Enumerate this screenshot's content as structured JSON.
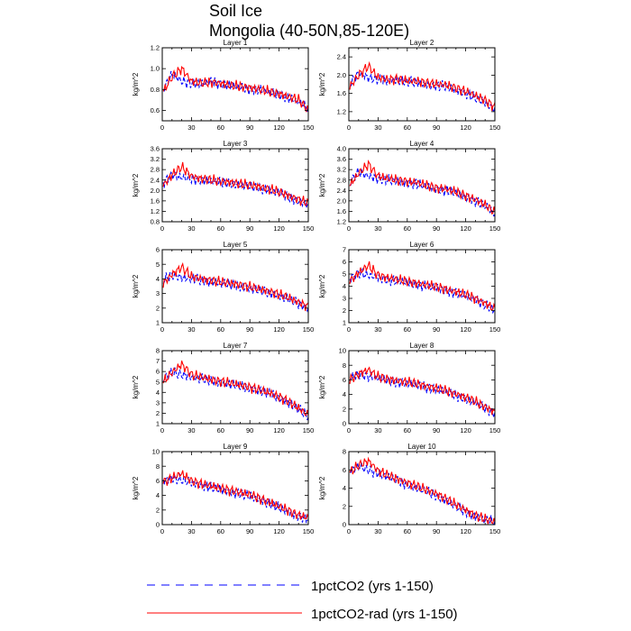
{
  "figure": {
    "title": "Soil Ice",
    "subtitle": "Mongolia (40-50N,85-120E)"
  },
  "legend": [
    {
      "label": "1pctCO2 (yrs 1-150)",
      "color": "#0000ff",
      "style": "dashed"
    },
    {
      "label": "1pctCO2-rad (yrs 1-150)",
      "color": "#ff0000",
      "style": "solid"
    }
  ],
  "chart_data": [
    {
      "type": "line",
      "title": "Layer 1",
      "ylabel": "kg/m^2",
      "xlim": [
        0,
        150
      ],
      "xticks": [
        0,
        30,
        60,
        90,
        120,
        150
      ],
      "ylim": [
        0.5,
        1.2
      ],
      "yticks": [
        0.6,
        0.8,
        1.0,
        1.2
      ],
      "series": [
        {
          "name": "1pctCO2 (yrs 1-150)",
          "x": [
            1,
            10,
            20,
            30,
            40,
            50,
            60,
            70,
            80,
            90,
            100,
            110,
            120,
            130,
            140,
            150
          ],
          "values": [
            0.8,
            0.95,
            0.88,
            0.86,
            0.85,
            0.88,
            0.85,
            0.84,
            0.82,
            0.8,
            0.8,
            0.77,
            0.75,
            0.72,
            0.68,
            0.62
          ]
        },
        {
          "name": "1pctCO2-rad (yrs 1-150)",
          "x": [
            1,
            10,
            20,
            30,
            40,
            50,
            60,
            70,
            80,
            90,
            100,
            110,
            120,
            130,
            140,
            150
          ],
          "values": [
            0.78,
            0.92,
            1.0,
            0.88,
            0.86,
            0.87,
            0.86,
            0.84,
            0.83,
            0.82,
            0.8,
            0.78,
            0.76,
            0.73,
            0.7,
            0.6
          ]
        }
      ]
    },
    {
      "type": "line",
      "title": "Layer 2",
      "ylabel": "kg/m^2",
      "xlim": [
        0,
        150
      ],
      "xticks": [
        0,
        30,
        60,
        90,
        120,
        150
      ],
      "ylim": [
        1.0,
        2.6
      ],
      "yticks": [
        1.2,
        1.6,
        2.0,
        2.4
      ],
      "series": [
        {
          "name": "1pctCO2 (yrs 1-150)",
          "x": [
            1,
            10,
            20,
            30,
            40,
            50,
            60,
            70,
            80,
            90,
            100,
            110,
            120,
            130,
            140,
            150
          ],
          "values": [
            1.8,
            2.05,
            1.95,
            1.9,
            1.88,
            1.9,
            1.85,
            1.84,
            1.8,
            1.76,
            1.75,
            1.68,
            1.6,
            1.5,
            1.4,
            1.25
          ]
        },
        {
          "name": "1pctCO2-rad (yrs 1-150)",
          "x": [
            1,
            10,
            20,
            30,
            40,
            50,
            60,
            70,
            80,
            90,
            100,
            110,
            120,
            130,
            140,
            150
          ],
          "values": [
            1.75,
            2.0,
            2.2,
            1.95,
            1.9,
            1.92,
            1.88,
            1.86,
            1.84,
            1.8,
            1.78,
            1.72,
            1.65,
            1.55,
            1.45,
            1.3
          ]
        }
      ]
    },
    {
      "type": "line",
      "title": "Layer 3",
      "ylabel": "kg/m^2",
      "xlim": [
        0,
        150
      ],
      "xticks": [
        0,
        30,
        60,
        90,
        120,
        150
      ],
      "ylim": [
        0.8,
        3.6
      ],
      "yticks": [
        0.8,
        1.2,
        1.6,
        2.0,
        2.4,
        2.8,
        3.2,
        3.6
      ],
      "series": [
        {
          "name": "1pctCO2 (yrs 1-150)",
          "x": [
            1,
            10,
            20,
            30,
            40,
            50,
            60,
            70,
            80,
            90,
            100,
            110,
            120,
            130,
            140,
            150
          ],
          "values": [
            2.3,
            2.6,
            2.5,
            2.45,
            2.4,
            2.35,
            2.3,
            2.3,
            2.2,
            2.15,
            2.1,
            2.0,
            1.9,
            1.75,
            1.6,
            1.45
          ]
        },
        {
          "name": "1pctCO2-rad (yrs 1-150)",
          "x": [
            1,
            10,
            20,
            30,
            40,
            50,
            60,
            70,
            80,
            90,
            100,
            110,
            120,
            130,
            140,
            150
          ],
          "values": [
            2.2,
            2.6,
            2.9,
            2.55,
            2.45,
            2.4,
            2.35,
            2.32,
            2.25,
            2.2,
            2.15,
            2.05,
            1.95,
            1.8,
            1.65,
            1.5
          ]
        }
      ]
    },
    {
      "type": "line",
      "title": "Layer 4",
      "ylabel": "kg/m^2",
      "xlim": [
        0,
        150
      ],
      "xticks": [
        0,
        30,
        60,
        90,
        120,
        150
      ],
      "ylim": [
        1.2,
        4.0
      ],
      "yticks": [
        1.2,
        1.6,
        2.0,
        2.4,
        2.8,
        3.2,
        3.6,
        4.0
      ],
      "series": [
        {
          "name": "1pctCO2 (yrs 1-150)",
          "x": [
            1,
            10,
            20,
            30,
            40,
            50,
            60,
            70,
            80,
            90,
            100,
            110,
            120,
            130,
            140,
            150
          ],
          "values": [
            2.7,
            3.1,
            2.95,
            2.85,
            2.8,
            2.75,
            2.7,
            2.65,
            2.55,
            2.45,
            2.4,
            2.3,
            2.15,
            2.0,
            1.8,
            1.5
          ]
        },
        {
          "name": "1pctCO2-rad (yrs 1-150)",
          "x": [
            1,
            10,
            20,
            30,
            40,
            50,
            60,
            70,
            80,
            90,
            100,
            110,
            120,
            130,
            140,
            150
          ],
          "values": [
            2.6,
            3.05,
            3.4,
            2.95,
            2.85,
            2.8,
            2.75,
            2.7,
            2.6,
            2.5,
            2.45,
            2.35,
            2.2,
            2.05,
            1.85,
            1.55
          ]
        }
      ]
    },
    {
      "type": "line",
      "title": "Layer 5",
      "ylabel": "kg/m^2",
      "xlim": [
        0,
        150
      ],
      "xticks": [
        0,
        30,
        60,
        90,
        120,
        150
      ],
      "ylim": [
        1.0,
        6.0
      ],
      "yticks": [
        1.0,
        2.0,
        3.0,
        4.0,
        5.0,
        6.0
      ],
      "series": [
        {
          "name": "1pctCO2 (yrs 1-150)",
          "x": [
            1,
            10,
            20,
            30,
            40,
            50,
            60,
            70,
            80,
            90,
            100,
            110,
            120,
            130,
            140,
            150
          ],
          "values": [
            3.9,
            4.3,
            4.1,
            4.0,
            3.9,
            3.8,
            3.7,
            3.6,
            3.5,
            3.35,
            3.2,
            3.05,
            2.85,
            2.6,
            2.3,
            2.0
          ]
        },
        {
          "name": "1pctCO2-rad (yrs 1-150)",
          "x": [
            1,
            10,
            20,
            30,
            40,
            50,
            60,
            70,
            80,
            90,
            100,
            110,
            120,
            130,
            140,
            150
          ],
          "values": [
            3.7,
            4.3,
            4.8,
            4.15,
            4.0,
            3.9,
            3.8,
            3.7,
            3.6,
            3.45,
            3.3,
            3.15,
            2.95,
            2.7,
            2.4,
            2.1
          ]
        }
      ]
    },
    {
      "type": "line",
      "title": "Layer 6",
      "ylabel": "kg/m^2",
      "xlim": [
        0,
        150
      ],
      "xticks": [
        0,
        30,
        60,
        90,
        120,
        150
      ],
      "ylim": [
        1.0,
        7.0
      ],
      "yticks": [
        1.0,
        2.0,
        3.0,
        4.0,
        5.0,
        6.0,
        7.0
      ],
      "series": [
        {
          "name": "1pctCO2 (yrs 1-150)",
          "x": [
            1,
            10,
            20,
            30,
            40,
            50,
            60,
            70,
            80,
            90,
            100,
            110,
            120,
            130,
            140,
            150
          ],
          "values": [
            4.6,
            5.1,
            4.9,
            4.7,
            4.55,
            4.4,
            4.3,
            4.15,
            4.0,
            3.85,
            3.65,
            3.45,
            3.2,
            2.9,
            2.5,
            2.0
          ]
        },
        {
          "name": "1pctCO2-rad (yrs 1-150)",
          "x": [
            1,
            10,
            20,
            30,
            40,
            50,
            60,
            70,
            80,
            90,
            100,
            110,
            120,
            130,
            140,
            150
          ],
          "values": [
            4.4,
            5.1,
            5.7,
            4.9,
            4.7,
            4.55,
            4.4,
            4.25,
            4.1,
            3.95,
            3.75,
            3.55,
            3.3,
            3.0,
            2.6,
            2.1
          ]
        }
      ]
    },
    {
      "type": "line",
      "title": "Layer 7",
      "ylabel": "kg/m^2",
      "xlim": [
        0,
        150
      ],
      "xticks": [
        0,
        30,
        60,
        90,
        120,
        150
      ],
      "ylim": [
        1.0,
        8.0
      ],
      "yticks": [
        1.0,
        2.0,
        3.0,
        4.0,
        5.0,
        6.0,
        7.0,
        8.0
      ],
      "series": [
        {
          "name": "1pctCO2 (yrs 1-150)",
          "x": [
            1,
            10,
            20,
            30,
            40,
            50,
            60,
            70,
            80,
            90,
            100,
            110,
            120,
            130,
            140,
            150
          ],
          "values": [
            5.3,
            5.9,
            5.7,
            5.5,
            5.3,
            5.1,
            4.95,
            4.8,
            4.6,
            4.4,
            4.15,
            3.85,
            3.5,
            3.0,
            2.4,
            1.7
          ]
        },
        {
          "name": "1pctCO2-rad (yrs 1-150)",
          "x": [
            1,
            10,
            20,
            30,
            40,
            50,
            60,
            70,
            80,
            90,
            100,
            110,
            120,
            130,
            140,
            150
          ],
          "values": [
            5.0,
            5.9,
            6.7,
            5.7,
            5.45,
            5.25,
            5.05,
            4.9,
            4.7,
            4.5,
            4.25,
            3.95,
            3.6,
            3.1,
            2.5,
            1.8
          ]
        }
      ]
    },
    {
      "type": "line",
      "title": "Layer 8",
      "ylabel": "kg/m^2",
      "xlim": [
        0,
        150
      ],
      "xticks": [
        0,
        30,
        60,
        90,
        120,
        150
      ],
      "ylim": [
        0,
        10
      ],
      "yticks": [
        0,
        2,
        4,
        6,
        8,
        10
      ],
      "series": [
        {
          "name": "1pctCO2 (yrs 1-150)",
          "x": [
            1,
            10,
            20,
            30,
            40,
            50,
            60,
            70,
            80,
            90,
            100,
            110,
            120,
            130,
            140,
            150
          ],
          "values": [
            6.2,
            6.8,
            6.5,
            6.2,
            5.9,
            5.7,
            5.5,
            5.3,
            5.0,
            4.7,
            4.3,
            3.9,
            3.4,
            2.8,
            2.1,
            1.4
          ]
        },
        {
          "name": "1pctCO2-rad (yrs 1-150)",
          "x": [
            1,
            10,
            20,
            30,
            40,
            50,
            60,
            70,
            80,
            90,
            100,
            110,
            120,
            130,
            140,
            150
          ],
          "values": [
            6.0,
            6.8,
            7.4,
            6.4,
            6.1,
            5.9,
            5.7,
            5.45,
            5.15,
            4.85,
            4.5,
            4.1,
            3.6,
            3.0,
            2.3,
            1.6
          ]
        }
      ]
    },
    {
      "type": "line",
      "title": "Layer 9",
      "ylabel": "kg/m^2",
      "xlim": [
        0,
        150
      ],
      "xticks": [
        0,
        30,
        60,
        90,
        120,
        150
      ],
      "ylim": [
        0,
        10
      ],
      "yticks": [
        0,
        2,
        4,
        6,
        8,
        10
      ],
      "series": [
        {
          "name": "1pctCO2 (yrs 1-150)",
          "x": [
            1,
            10,
            20,
            30,
            40,
            50,
            60,
            70,
            80,
            90,
            100,
            110,
            120,
            130,
            140,
            150
          ],
          "values": [
            6.0,
            6.4,
            6.1,
            5.8,
            5.4,
            5.1,
            4.8,
            4.5,
            4.2,
            3.9,
            3.4,
            2.9,
            2.3,
            1.7,
            1.1,
            0.8
          ]
        },
        {
          "name": "1pctCO2-rad (yrs 1-150)",
          "x": [
            1,
            10,
            20,
            30,
            40,
            50,
            60,
            70,
            80,
            90,
            100,
            110,
            120,
            130,
            140,
            150
          ],
          "values": [
            5.8,
            6.4,
            7.0,
            6.0,
            5.6,
            5.3,
            5.0,
            4.7,
            4.4,
            4.1,
            3.6,
            3.1,
            2.5,
            1.9,
            1.3,
            0.9
          ]
        }
      ]
    },
    {
      "type": "line",
      "title": "Layer 10",
      "ylabel": "kg/m^2",
      "xlim": [
        0,
        150
      ],
      "xticks": [
        0,
        30,
        60,
        90,
        120,
        150
      ],
      "ylim": [
        0,
        8.0
      ],
      "yticks": [
        0.0,
        2.0,
        4.0,
        6.0,
        8.0
      ],
      "series": [
        {
          "name": "1pctCO2 (yrs 1-150)",
          "x": [
            1,
            10,
            20,
            30,
            40,
            50,
            60,
            70,
            80,
            90,
            100,
            110,
            120,
            130,
            140,
            150
          ],
          "values": [
            5.9,
            6.4,
            6.0,
            5.6,
            5.2,
            4.8,
            4.4,
            4.0,
            3.6,
            3.2,
            2.6,
            2.0,
            1.4,
            0.9,
            0.5,
            0.3
          ]
        },
        {
          "name": "1pctCO2-rad (yrs 1-150)",
          "x": [
            1,
            10,
            20,
            30,
            40,
            50,
            60,
            70,
            80,
            90,
            100,
            110,
            120,
            130,
            140,
            150
          ],
          "values": [
            5.7,
            6.5,
            7.0,
            5.9,
            5.4,
            5.0,
            4.6,
            4.2,
            3.8,
            3.4,
            2.8,
            2.2,
            1.6,
            1.0,
            0.6,
            0.3
          ]
        }
      ]
    }
  ]
}
